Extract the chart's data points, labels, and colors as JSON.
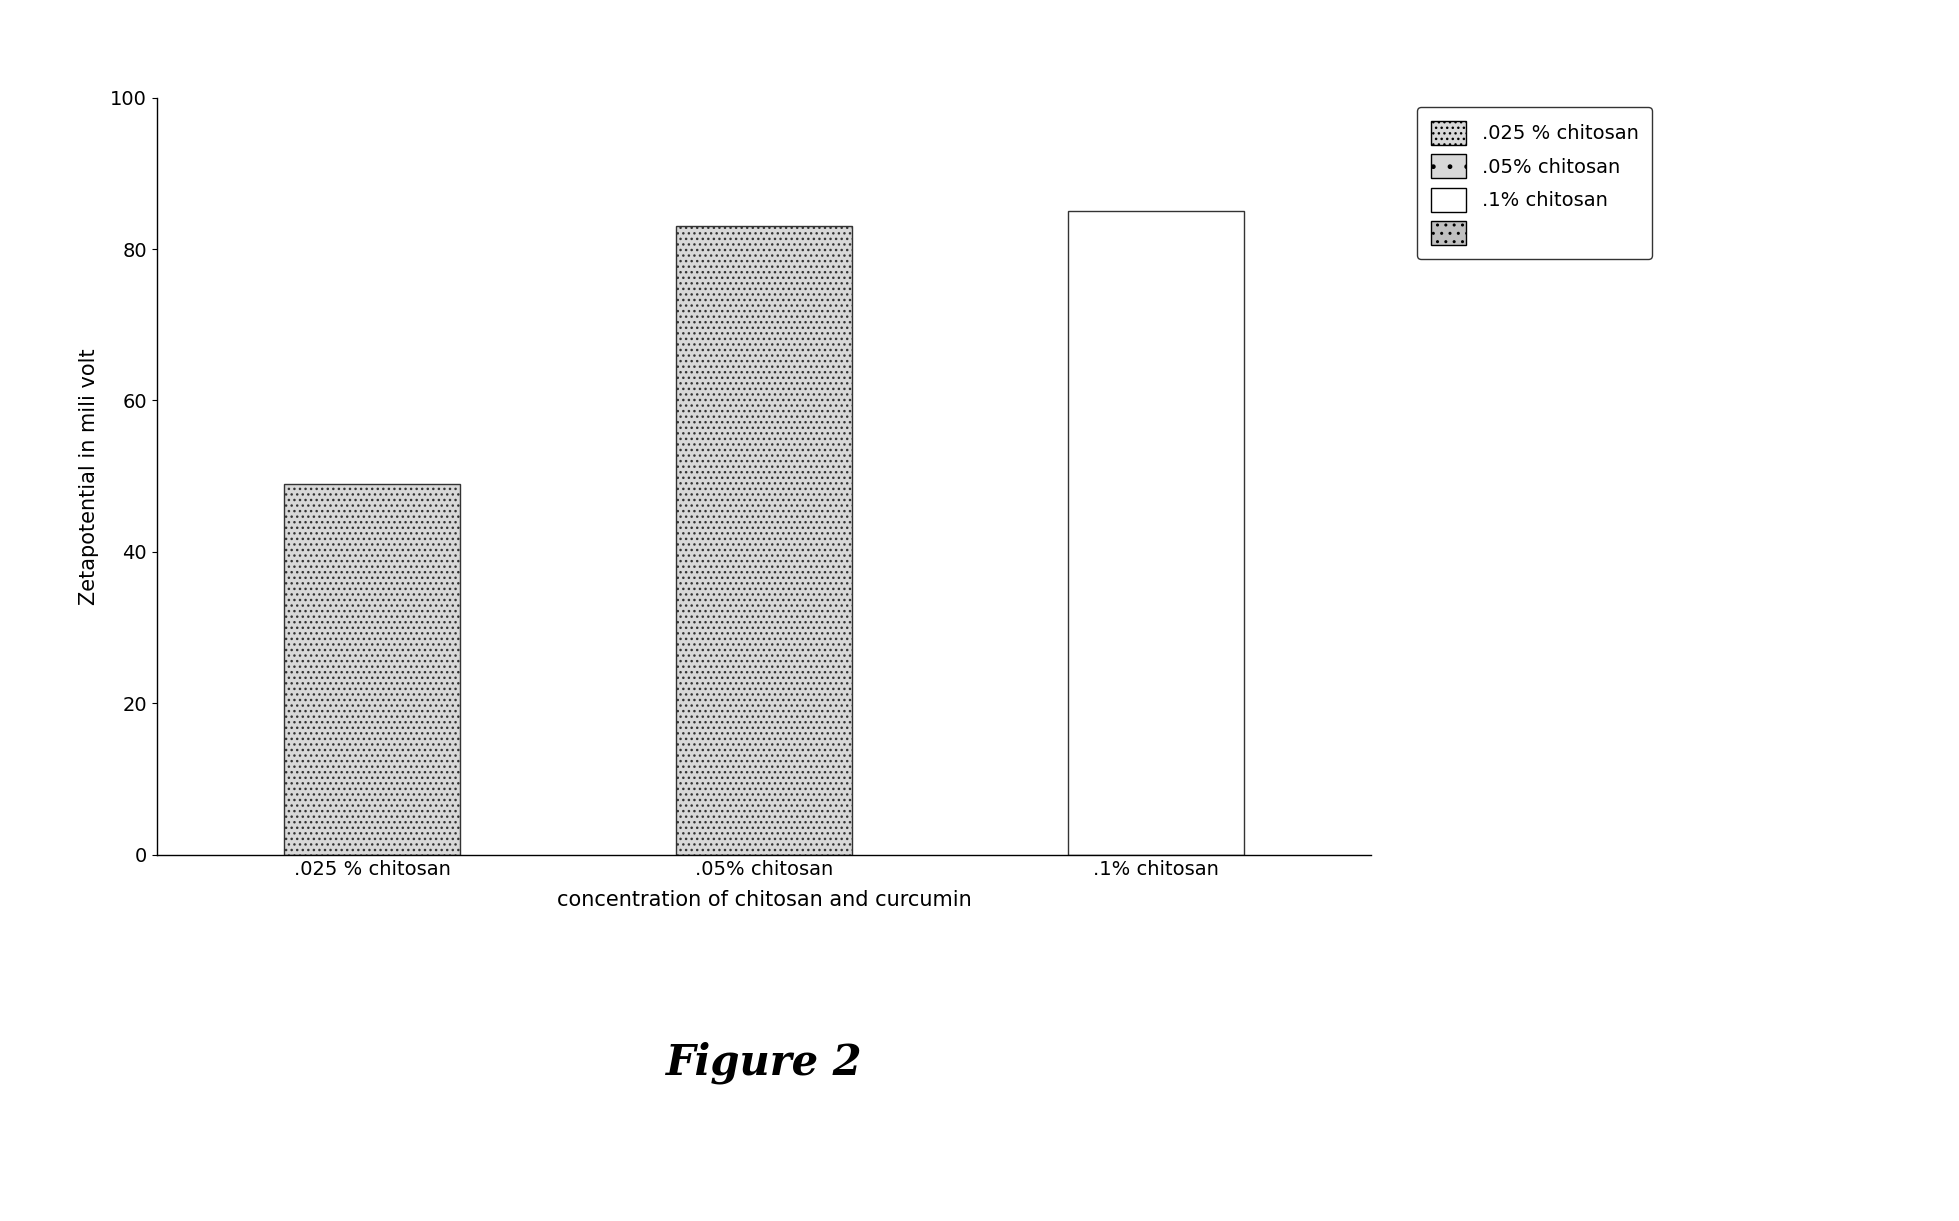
{
  "categories": [
    ".025 % chitosan",
    ".05% chitosan",
    ".1% chitosan"
  ],
  "values": [
    49,
    83,
    85
  ],
  "xlabel": "concentration of chitosan and curcumin",
  "ylabel": "Zetapotential in mili volt",
  "ylim": [
    0,
    100
  ],
  "yticks": [
    0,
    20,
    40,
    60,
    80,
    100
  ],
  "legend_labels": [
    ".025 % chitosan",
    ".05% chitosan",
    ".1% chitosan",
    ""
  ],
  "figure_label": "Figure 2",
  "background_color": "#ffffff",
  "bar_edge_color": "#333333",
  "bar_width": 0.45,
  "axis_fontsize": 15,
  "tick_fontsize": 14,
  "legend_fontsize": 14,
  "figure_label_fontsize": 30,
  "hatch_patterns": [
    "...",
    "...",
    ""
  ],
  "face_colors": [
    "#d8d8d8",
    "#d8d8d8",
    "#ffffff"
  ],
  "legend_face_colors": [
    "#d8d8d8",
    "#d8d8d8",
    "#ffffff",
    "#c0c0c0"
  ],
  "legend_hatch_patterns": [
    "...",
    ".",
    "",
    ".."
  ]
}
